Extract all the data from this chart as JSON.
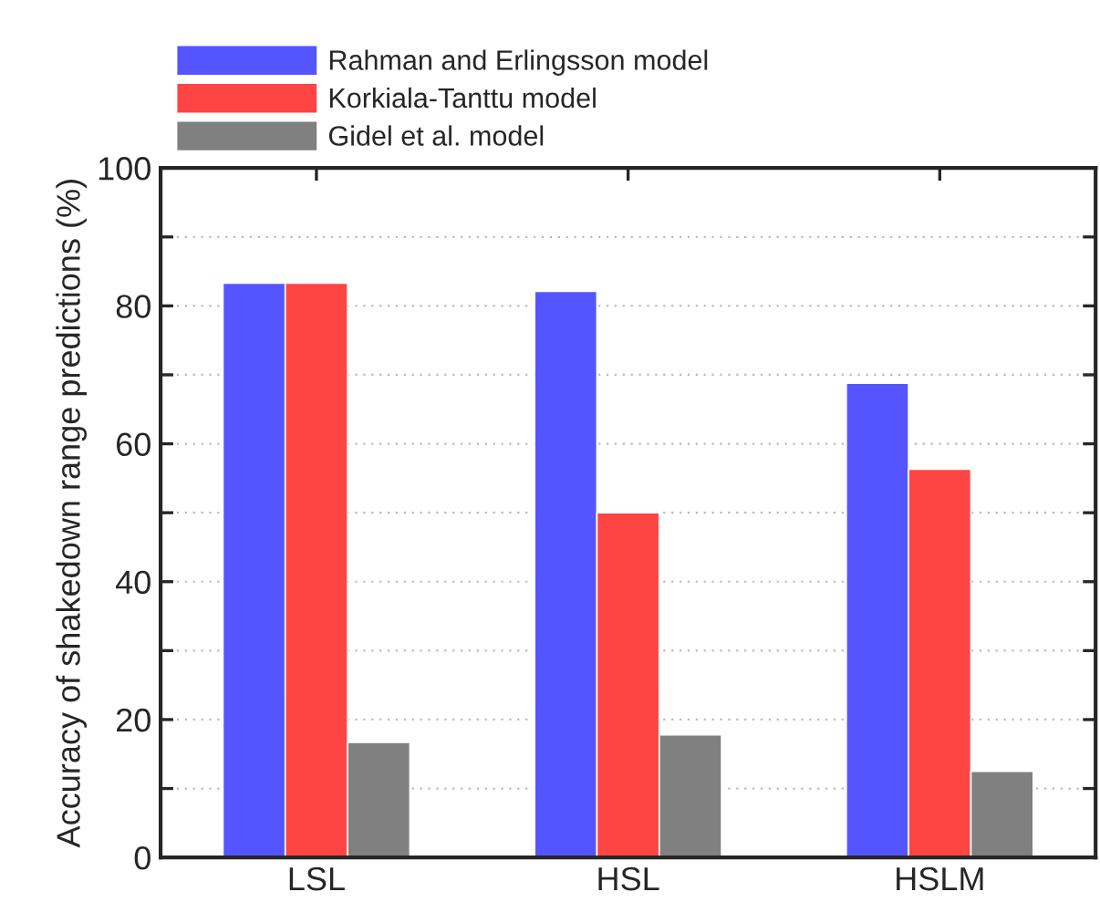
{
  "chart_data": {
    "type": "bar",
    "ylabel": "Accuracy of shakedown range predictions (%)",
    "categories": [
      "LSL",
      "HSL",
      "HSLM"
    ],
    "series": [
      {
        "name": "Rahman and Erlingsson model",
        "color": "#5555ff",
        "values": [
          83.3,
          82.1,
          68.8
        ]
      },
      {
        "name": "Korkiala-Tanttu model",
        "color": "#ff4444",
        "values": [
          83.3,
          50.0,
          56.3
        ]
      },
      {
        "name": "Gidel et al. model",
        "color": "#808080",
        "values": [
          16.7,
          17.8,
          12.5
        ]
      }
    ],
    "ylim": [
      0,
      100
    ],
    "yticks": [
      0,
      {
        "value": 10,
        "label": null
      },
      20,
      {
        "value": 30,
        "label": null
      },
      40,
      {
        "value": 50,
        "label": null
      },
      60,
      {
        "value": 70,
        "label": null
      },
      80,
      {
        "value": 90,
        "label": null
      },
      100
    ],
    "grid": "y",
    "legend": "top left"
  }
}
